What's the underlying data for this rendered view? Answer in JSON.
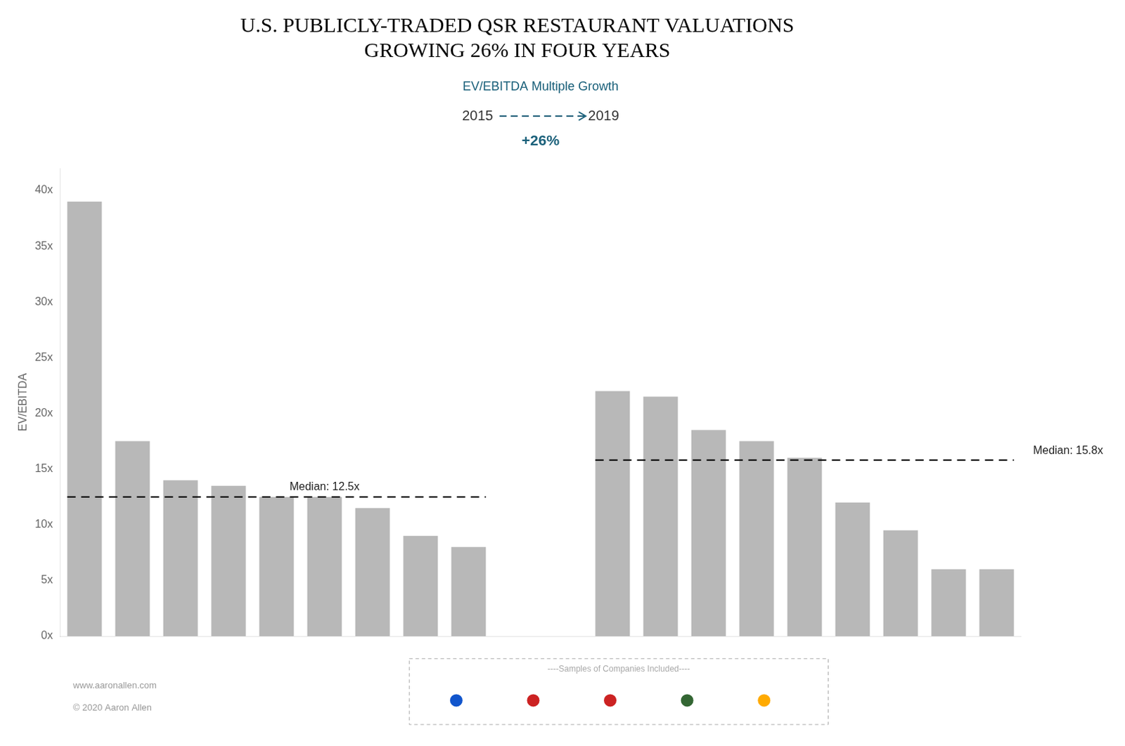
{
  "chart_data": {
    "type": "bar",
    "title": [
      "U.S. PUBLICLY-TRADED QSR RESTAURANT VALUATIONS",
      "GROWING 26% IN FOUR YEARS"
    ],
    "ylabel": "EV/EBITDA",
    "color": "#b8b8b8",
    "categories": [
      null,
      null,
      null,
      null,
      null,
      null,
      null,
      null,
      null,
      null,
      null,
      null,
      null,
      null,
      null,
      null,
      null,
      null,
      null,
      null
    ],
    "values": [
      39.0,
      17.5,
      14.0,
      13.5,
      12.5,
      12.5,
      11.5,
      9.0,
      8.0,
      null,
      null,
      22.0,
      21.5,
      18.5,
      17.5,
      16.0,
      12.0,
      9.5,
      6.0,
      6.0
    ],
    "groups": [
      {
        "name": "2015",
        "median": 12.5,
        "median_label": "Median: 12.5x"
      },
      {
        "name": "2019",
        "median": 15.8,
        "median_label": "Median: 15.8x"
      }
    ],
    "arrow": {
      "label": "EV/EBITDA Multiple Growth",
      "value_label": "+26%",
      "color": "#1a607a"
    },
    "ylim": [
      0,
      42
    ],
    "yticks": [
      {
        "value": 0,
        "label": "0x"
      },
      {
        "value": 5,
        "label": "5x"
      },
      {
        "value": 10,
        "label": "10x"
      },
      {
        "value": 15,
        "label": "15x"
      },
      {
        "value": 20,
        "label": "20x"
      },
      {
        "value": 25,
        "label": "25x"
      },
      {
        "value": 30,
        "label": "30x"
      },
      {
        "value": 35,
        "label": "35x"
      },
      {
        "value": 40,
        "label": "40x"
      }
    ],
    "grid": false,
    "tick_labels": "y",
    "footer": [
      "www.aaronallen.com",
      "© 2020 Aaron Allen"
    ],
    "samples": {
      "label": "----Samples of Companies Included----",
      "colors": [
        "#1155cc",
        "#cc2222",
        "#cc2222",
        "#336633",
        "#ffaa00"
      ]
    }
  }
}
